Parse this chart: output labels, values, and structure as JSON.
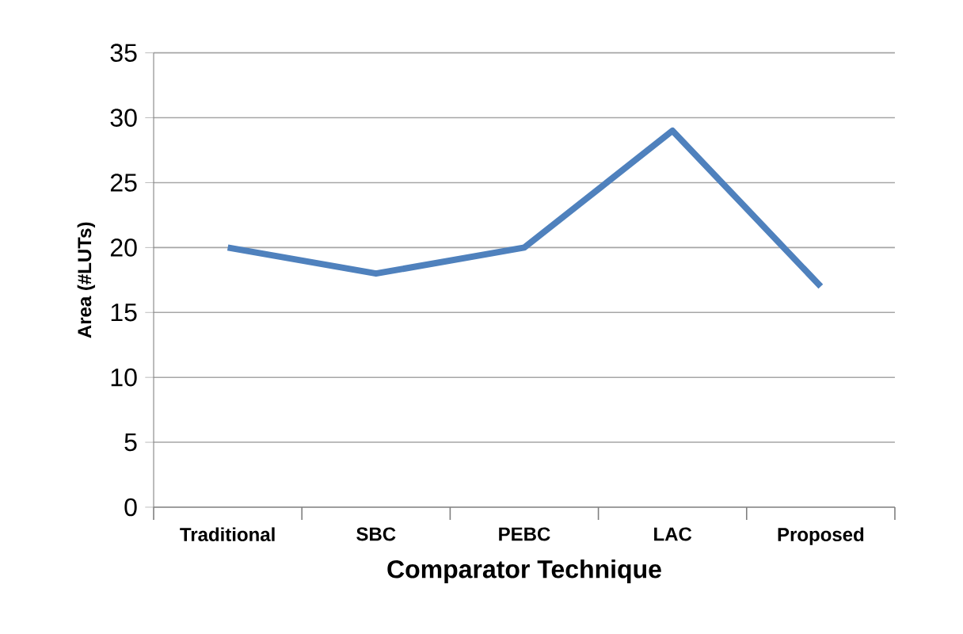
{
  "chart_data": {
    "type": "line",
    "xlabel": "Comparator Technique",
    "ylabel": "Area (#LUTs)",
    "categories": [
      "Traditional",
      "SBC",
      "PEBC",
      "LAC",
      "Proposed"
    ],
    "series": [
      {
        "color": "#4f81bd",
        "values": [
          20,
          18,
          20,
          29,
          17
        ]
      }
    ],
    "ylim": [
      0,
      35
    ],
    "yticks": [
      0,
      5,
      10,
      15,
      20,
      25,
      30,
      35
    ],
    "grid": "y",
    "marker": "none",
    "line_style": "solid"
  }
}
